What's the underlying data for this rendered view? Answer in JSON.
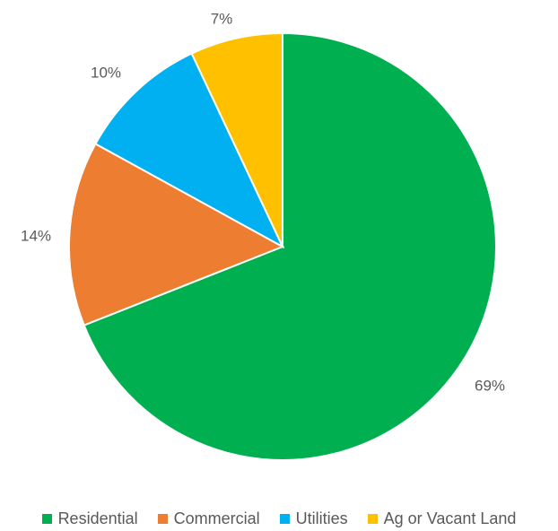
{
  "chart_data": {
    "type": "pie",
    "title": "",
    "categories": [
      "Residential",
      "Commercial",
      "Utilities",
      "Ag or Vacant Land"
    ],
    "values": [
      69,
      14,
      10,
      7
    ],
    "labels": [
      "69%",
      "14%",
      "10%",
      "7%"
    ],
    "colors": [
      "#00B050",
      "#ED7D31",
      "#00B0F0",
      "#FFC000"
    ],
    "legend_position": "bottom",
    "start_angle": "12 o'clock",
    "direction": "clockwise"
  }
}
